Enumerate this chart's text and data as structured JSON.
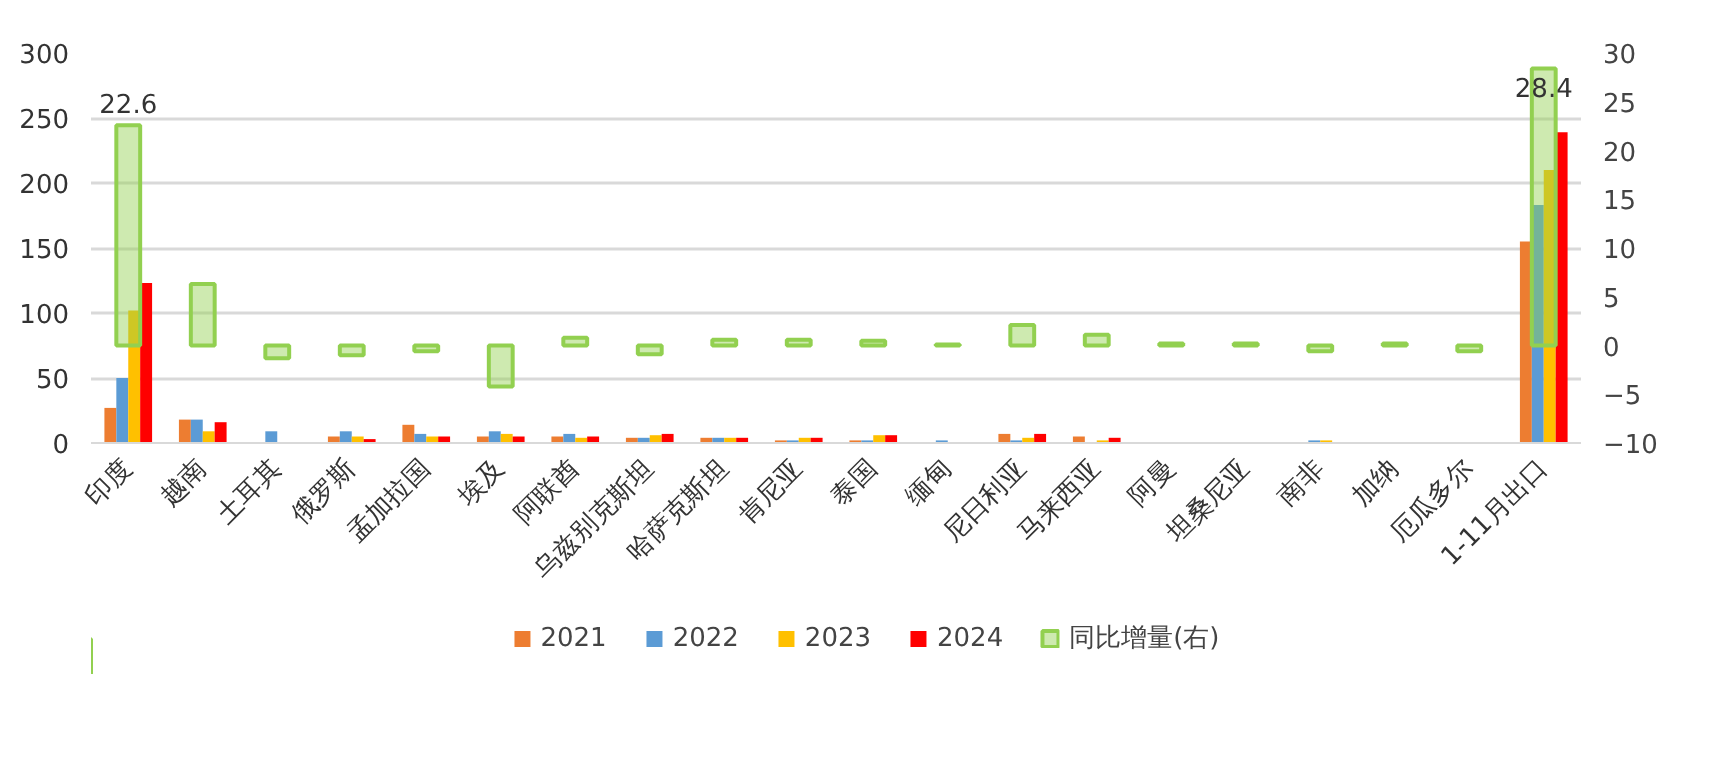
{
  "chart_data": {
    "type": "bar",
    "categories": [
      "印度",
      "越南",
      "土耳其",
      "俄罗斯",
      "孟加拉国",
      "埃及",
      "阿联酋",
      "乌兹别克斯坦",
      "哈萨克斯坦",
      "肯尼亚",
      "泰国",
      "缅甸",
      "尼日利亚",
      "马来西亚",
      "阿曼",
      "坦桑尼亚",
      "南非",
      "加纳",
      "厄瓜多尔",
      "1-11月出口"
    ],
    "series": [
      {
        "name": "2021",
        "color": "#ed7d31",
        "values": [
          27,
          18,
          null,
          5,
          14,
          5,
          5,
          4,
          4,
          2,
          2,
          null,
          7,
          5,
          null,
          null,
          null,
          null,
          null,
          155
        ]
      },
      {
        "name": "2022",
        "color": "#5b9bd5",
        "values": [
          50,
          18,
          9,
          9,
          7,
          9,
          7,
          4,
          4,
          2,
          2,
          2,
          2,
          null,
          null,
          null,
          2,
          null,
          null,
          183
        ]
      },
      {
        "name": "2023",
        "color": "#ffc000",
        "values": [
          102,
          9,
          null,
          5,
          5,
          7,
          4,
          6,
          4,
          4,
          6,
          null,
          4,
          2,
          null,
          null,
          2,
          null,
          null,
          210
        ]
      },
      {
        "name": "2024",
        "color": "#ff0000",
        "values": [
          123,
          16,
          null,
          3,
          5,
          5,
          5,
          7,
          4,
          4,
          6,
          null,
          7,
          4,
          null,
          null,
          null,
          null,
          null,
          239
        ]
      },
      {
        "name": "同比增量(右)",
        "color": "#92d050",
        "axis": "y2",
        "values": [
          22.6,
          6.3,
          -1.3,
          -1,
          -0.6,
          -4.2,
          0.8,
          -0.9,
          0.6,
          0.6,
          0.5,
          0.1,
          2.1,
          1.1,
          0.2,
          0.2,
          -0.6,
          0.2,
          -0.6,
          28.4
        ],
        "value_labels": [
          "22.6",
          null,
          null,
          null,
          null,
          null,
          null,
          null,
          null,
          null,
          null,
          null,
          null,
          null,
          null,
          null,
          null,
          null,
          null,
          "28.4"
        ]
      }
    ],
    "ylim": [
      0,
      300
    ],
    "yticks": [
      0,
      50,
      100,
      150,
      200,
      250,
      300
    ],
    "y2lim": [
      -10,
      30
    ],
    "y2ticks": [
      -10,
      -5,
      0,
      5,
      10,
      15,
      20,
      25,
      30
    ],
    "grid": "y",
    "legend": "bottom"
  }
}
